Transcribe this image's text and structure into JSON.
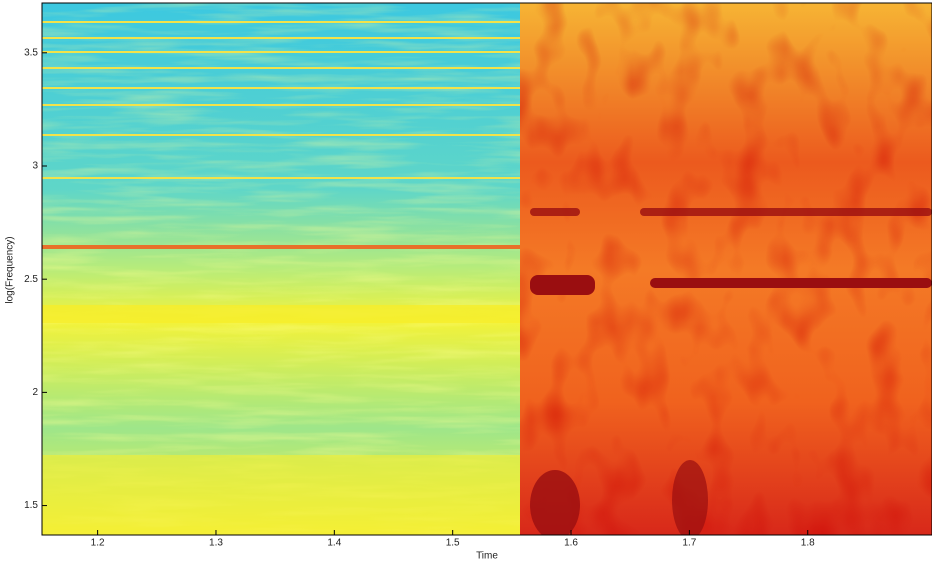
{
  "chart_data": {
    "type": "spectrogram",
    "x_label": "Time",
    "y_label": "log(Frequency)",
    "xlim": [
      1.153,
      1.905
    ],
    "xticks": [
      1.2,
      1.3,
      1.4,
      1.5,
      1.6,
      1.7,
      1.8
    ],
    "ylim": [
      1.37,
      3.72
    ],
    "yticks": [
      1.5,
      2,
      2.5,
      3,
      3.5
    ]
  }
}
